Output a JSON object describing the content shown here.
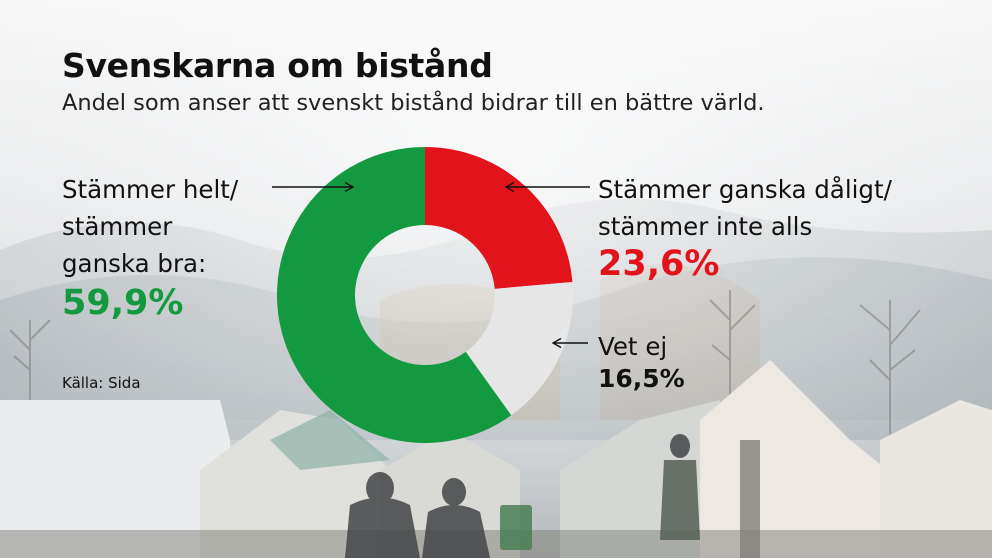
{
  "title": "Svenskarna om bistånd",
  "subtitle": "Andel som anser att svenskt bistånd bidrar till en bättre värld.",
  "source": "Källa: Sida",
  "labels": {
    "positive": [
      "Stämmer helt/",
      "stämmer",
      "ganska bra:"
    ],
    "negative": [
      "Stämmer ganska dåligt/",
      "stämmer inte alls"
    ],
    "unknown": [
      "Vet ej"
    ]
  },
  "chart_data": {
    "type": "pie",
    "variant": "donut",
    "title": "Svenskarna om bistånd",
    "subtitle": "Andel som anser att svenskt bistånd bidrar till en bättre värld.",
    "unit": "%",
    "slices": [
      {
        "name": "Stämmer ganska dåligt/stämmer inte alls",
        "value": 23.6,
        "label": "23,6%",
        "color": "#e3131b"
      },
      {
        "name": "Vet ej",
        "value": 16.5,
        "label": "16,5%",
        "color": "#e6e6e6"
      },
      {
        "name": "Stämmer helt/stämmer ganska bra",
        "value": 59.9,
        "label": "59,9%",
        "color": "#13993f"
      }
    ],
    "start_angle_deg": 0,
    "direction": "clockwise",
    "source": "Källa: Sida"
  }
}
